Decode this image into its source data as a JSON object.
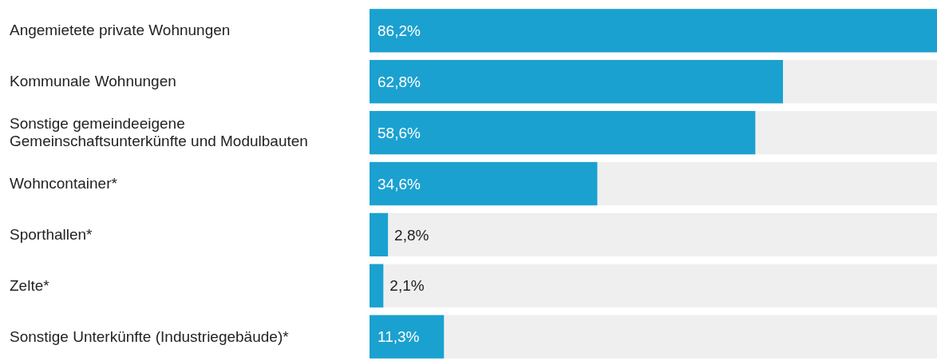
{
  "chart_data": {
    "type": "bar",
    "orientation": "horizontal",
    "categories": [
      "Angemietete private Wohnungen",
      "Kommunale Wohnungen",
      "Sonstige gemeindeeigene Gemeinschaftsunterkünfte und Modulbauten",
      "Wohncontainer*",
      "Sporthallen*",
      "Zelte*",
      "Sonstige Unterkünfte (Industriegebäude)*"
    ],
    "values": [
      86.2,
      62.8,
      58.6,
      34.6,
      2.8,
      2.1,
      11.3
    ],
    "value_labels": [
      "86,2%",
      "62,8%",
      "58,6%",
      "34,6%",
      "2,8%",
      "2,1%",
      "11,3%"
    ],
    "color": "#1ba1d0",
    "xlim": [
      0,
      86.2
    ]
  }
}
